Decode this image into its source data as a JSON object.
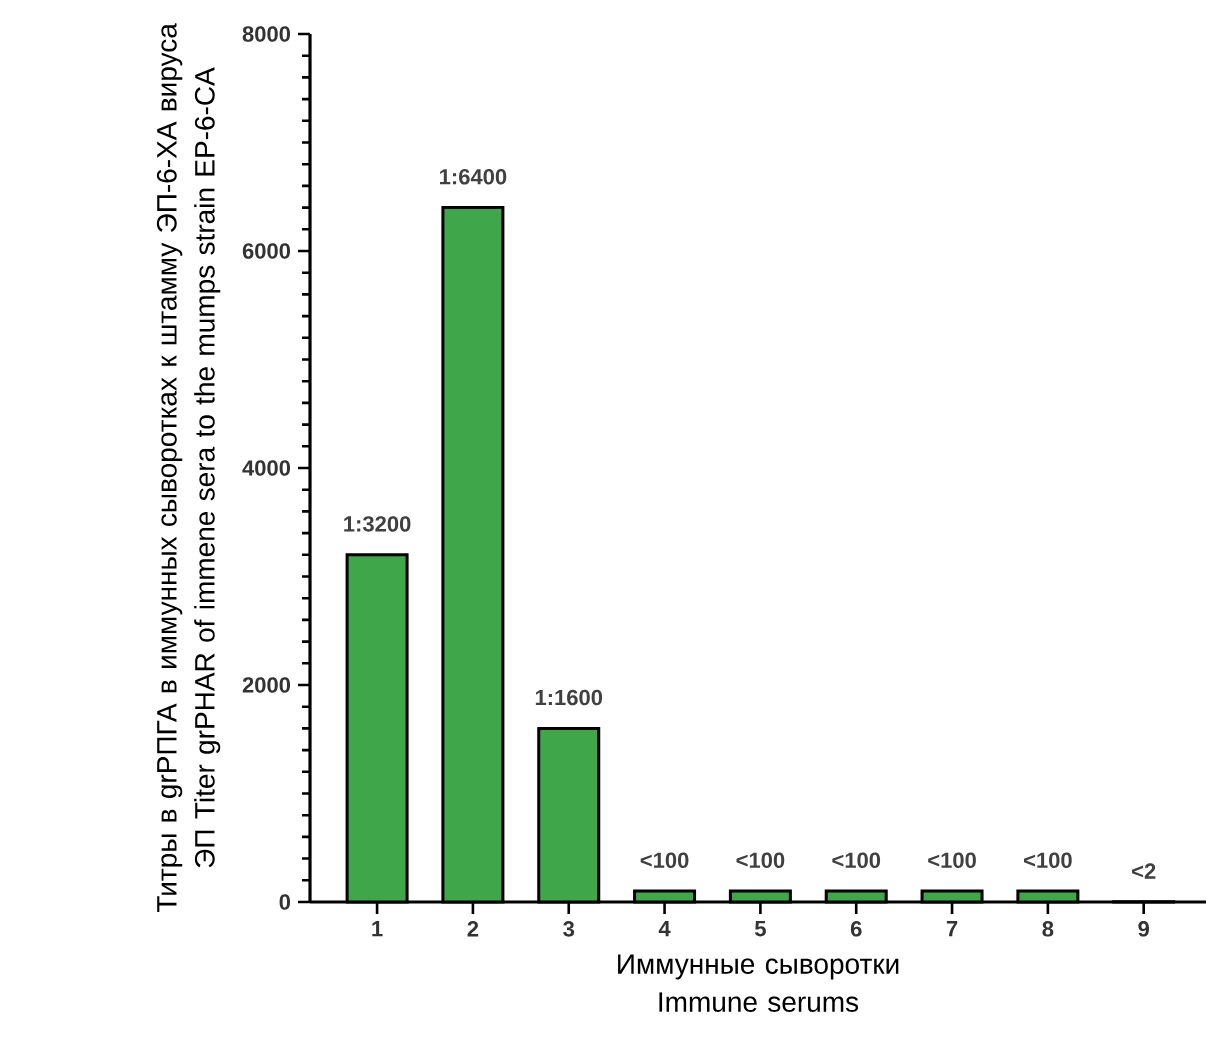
{
  "chart_data": {
    "type": "bar",
    "xlabel": "Иммунные сыворотки Immune serums",
    "ylabel": "Титры в grРПГА в иммунных сыворотках к штамму ЭП-6-ХА вируса ЭП Titer grPHAR of immene sera to the mumps strain EP-6-CA",
    "categories": [
      "1",
      "2",
      "3",
      "4",
      "5",
      "6",
      "7",
      "8",
      "9"
    ],
    "values": [
      3200,
      6400,
      1600,
      100,
      100,
      100,
      100,
      100,
      2
    ],
    "value_labels": [
      "1:3200",
      "1:6400",
      "1:1600",
      "<100",
      "<100",
      "<100",
      "<100",
      "<100",
      "<2"
    ],
    "color": "#3fa64a",
    "ylim": [
      0,
      8000
    ],
    "yticks": [
      0,
      2000,
      4000,
      6000,
      8000
    ]
  }
}
